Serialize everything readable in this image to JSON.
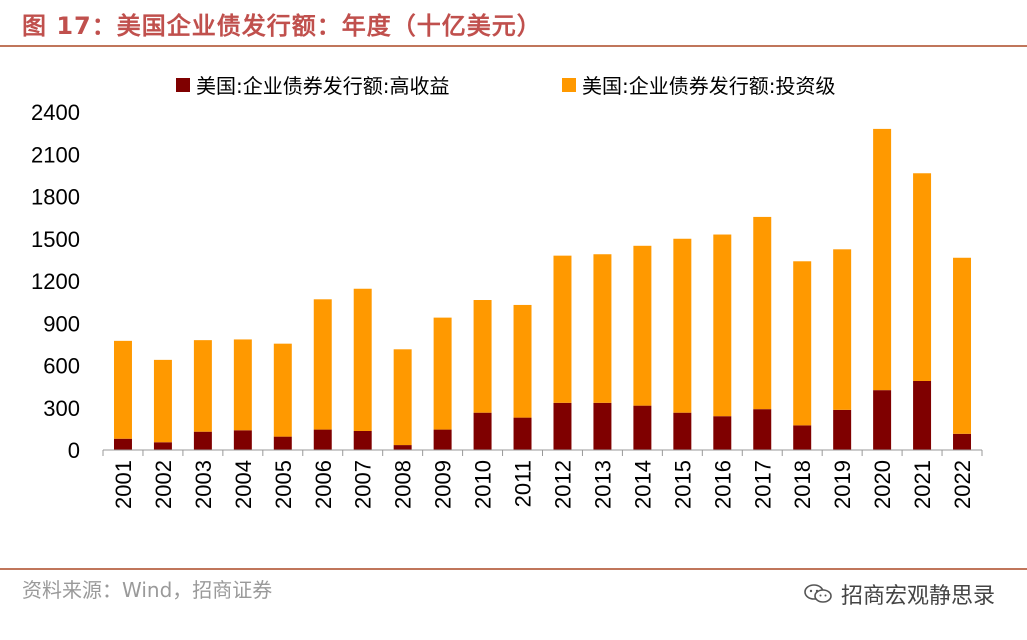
{
  "header": {
    "title": "图 17：美国企业债发行额：年度（十亿美元）"
  },
  "footer": {
    "source": "资料来源：Wind，招商证券",
    "brand": "招商宏观静思录",
    "brand_icon": "wechat-icon"
  },
  "colors": {
    "high_yield": "#7f0000",
    "investment_grade": "#ff9900",
    "rule": "#c0765b",
    "title": "#c0504d"
  },
  "chart_data": {
    "type": "bar",
    "stacked": true,
    "title": "美国企业债发行额：年度（十亿美元）",
    "categories": [
      "2001",
      "2002",
      "2003",
      "2004",
      "2005",
      "2006",
      "2007",
      "2008",
      "2009",
      "2010",
      "2011",
      "2012",
      "2013",
      "2014",
      "2015",
      "2016",
      "2017",
      "2018",
      "2019",
      "2020",
      "2021",
      "2022"
    ],
    "series": [
      {
        "name": "美国:企业债券发行额:高收益",
        "values": [
          80,
          55,
          130,
          140,
          95,
          145,
          135,
          35,
          145,
          265,
          230,
          335,
          335,
          315,
          265,
          240,
          290,
          175,
          285,
          425,
          490,
          115
        ]
      },
      {
        "name": "美国:企业债券发行额:投资级",
        "values": [
          695,
          585,
          650,
          645,
          660,
          925,
          1010,
          680,
          795,
          800,
          800,
          1045,
          1055,
          1135,
          1235,
          1290,
          1365,
          1165,
          1140,
          1855,
          1475,
          1250
        ]
      }
    ],
    "yticks": [
      "0",
      "300",
      "600",
      "900",
      "1200",
      "1500",
      "1800",
      "2100",
      "2400"
    ],
    "ylim": [
      0,
      2400
    ],
    "xlabel": "",
    "ylabel": "",
    "legend_position": "top"
  }
}
